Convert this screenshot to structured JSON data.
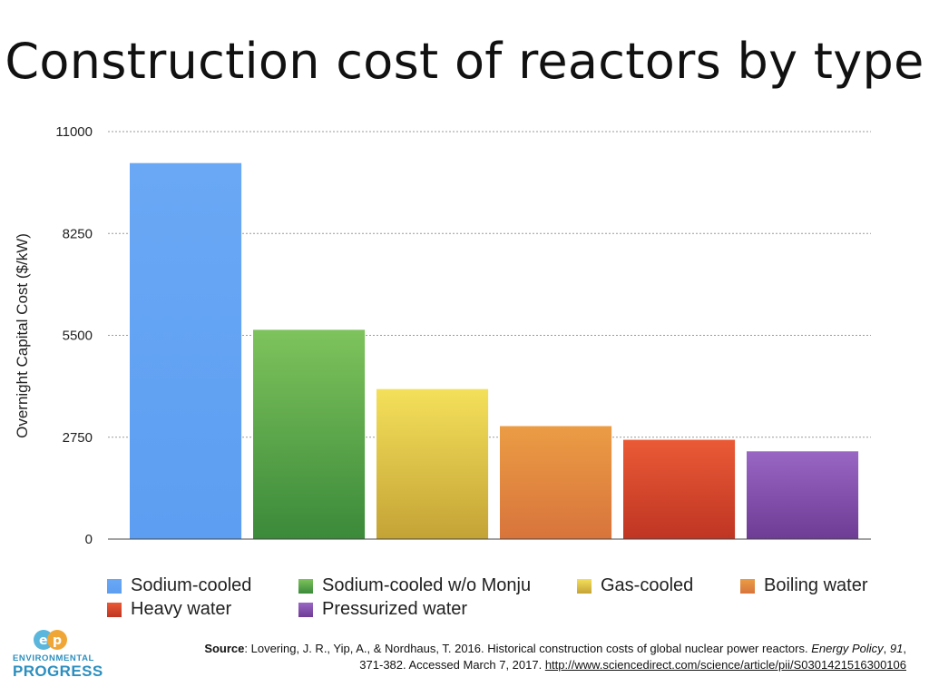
{
  "title": "Construction cost of reactors by type",
  "chart_data": {
    "type": "bar",
    "title": "Construction cost of reactors by type",
    "ylabel": "Overnight Capital Cost ($/kW)",
    "xlabel": "",
    "ylim": [
      0,
      11000
    ],
    "yticks": [
      0,
      2750,
      5500,
      8250,
      11000
    ],
    "grid": "horizontal dotted",
    "legend_position": "bottom",
    "categories": [
      "Sodium-cooled",
      "Sodium-cooled w/o Monju",
      "Gas-cooled",
      "Boiling water",
      "Heavy water",
      "Pressurized water"
    ],
    "values": [
      10150,
      5650,
      4050,
      3050,
      2680,
      2370
    ],
    "colors": [
      [
        "#6aa8f5",
        "#5d9ef2"
      ],
      [
        "#7ec35c",
        "#3b8a3a"
      ],
      [
        "#f4e05a",
        "#c4a336"
      ],
      [
        "#eb9c44",
        "#d8743c"
      ],
      [
        "#ea5a36",
        "#bf3523"
      ],
      [
        "#9966c4",
        "#6e3c94"
      ]
    ]
  },
  "legend": [
    {
      "label": "Sodium-cooled",
      "color": "#5b9ef0"
    },
    {
      "label": "Sodium-cooled w/o Monju",
      "color": "#5aa549"
    },
    {
      "label": "Gas-cooled",
      "color": "#e1c64a"
    },
    {
      "label": "Boiling water",
      "color": "#e0883d"
    },
    {
      "label": "Heavy water",
      "color": "#d5452c"
    },
    {
      "label": "Pressurized water",
      "color": "#8552ad"
    }
  ],
  "logo": {
    "line1": "ENVIRONMENTAL",
    "line2": "PROGRESS",
    "icon": "ep-logo-icon"
  },
  "source": {
    "label": "Source",
    "text1": ": Lovering, J. R., Yip, A., & Nordhaus, T. 2016. Historical construction costs of global nuclear power reactors. ",
    "journal": "Energy Policy",
    "sep1": ", ",
    "volume": "91",
    "text2": ",",
    "text3": "371-382. Accessed March 7, 2017. ",
    "url": "http://www.sciencedirect.com/science/article/pii/S0301421516300106"
  }
}
